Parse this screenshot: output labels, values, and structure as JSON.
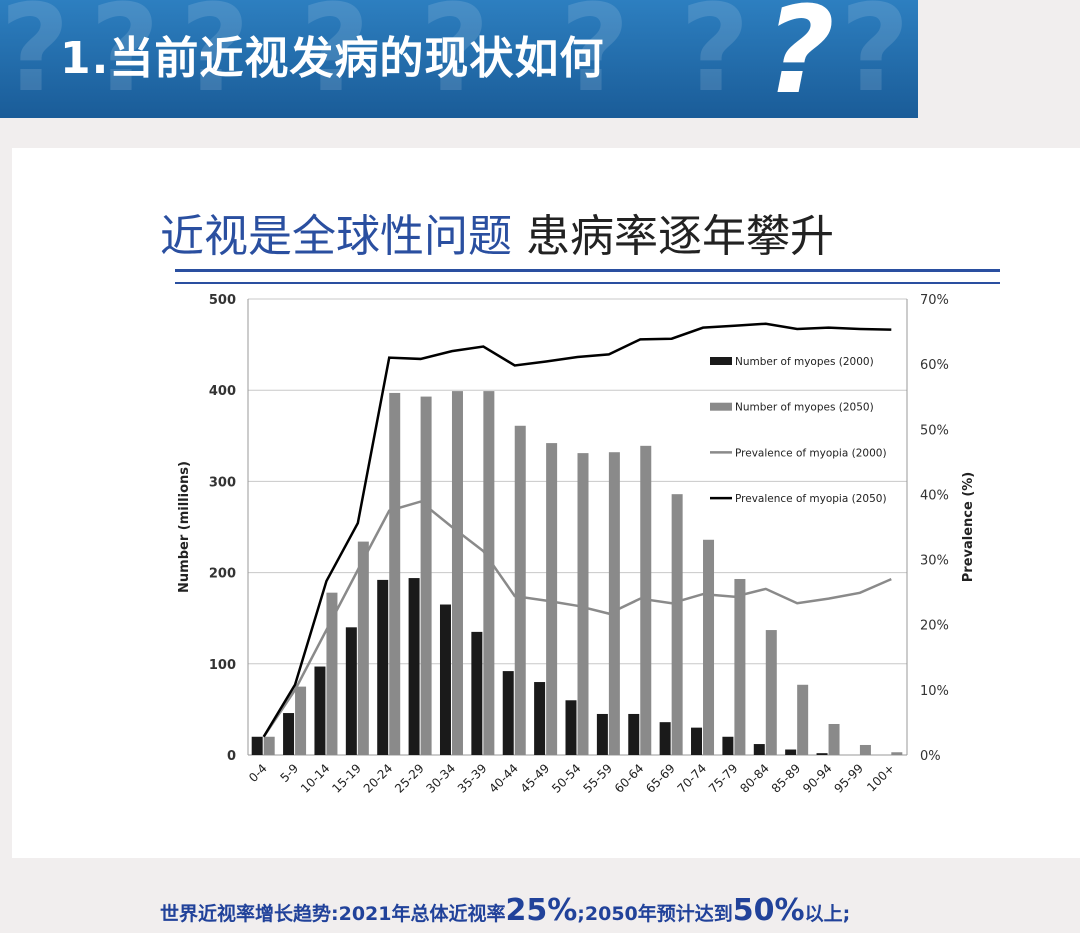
{
  "header": {
    "title": "1.当前近视发病的现状如何",
    "question_mark": "?"
  },
  "subtitle": {
    "blue": "近视是全球性问题",
    "dark": "患病率逐年攀升"
  },
  "footer": {
    "p1": "世界近视率增长趋势:2021年总体近视率",
    "v1": "25%",
    "p2": ";2050年预计达到",
    "v2": "50%",
    "p3": "以上;"
  },
  "colors": {
    "banner": "#1f6aab",
    "accent": "#2a4fa0",
    "bar2000": "#1a1a1a",
    "bar2050": "#8a8a8a",
    "line2000": "#8a8a8a",
    "line2050": "#000000"
  },
  "chart_data": {
    "type": "bar+line",
    "categories": [
      "0-4",
      "5-9",
      "10-14",
      "15-19",
      "20-24",
      "25-29",
      "30-34",
      "35-39",
      "40-44",
      "45-49",
      "50-54",
      "55-59",
      "60-64",
      "65-69",
      "70-74",
      "75-79",
      "80-84",
      "85-89",
      "90-94",
      "95-99",
      "100+"
    ],
    "ylabel": "Number (millions)",
    "y2label": "Prevalence (%)",
    "ylim": [
      0,
      500
    ],
    "yticks": [
      "0",
      "100",
      "200",
      "300",
      "400",
      "500"
    ],
    "y2lim": [
      0,
      70
    ],
    "y2ticks": [
      "0%",
      "10%",
      "20%",
      "30%",
      "40%",
      "50%",
      "60%",
      "70%"
    ],
    "grid": true,
    "legend": "right",
    "series": [
      {
        "name": "Number of myopes (2000)",
        "kind": "bar",
        "values": [
          20,
          46,
          97,
          140,
          192,
          194,
          165,
          135,
          92,
          80,
          60,
          45,
          45,
          36,
          30,
          20,
          12,
          6,
          2,
          0,
          0
        ]
      },
      {
        "name": "Number of myopes (2050)",
        "kind": "bar",
        "values": [
          20,
          75,
          178,
          234,
          397,
          393,
          399,
          399,
          361,
          342,
          331,
          332,
          339,
          286,
          236,
          193,
          137,
          77,
          34,
          11,
          3
        ]
      },
      {
        "name": "Prevalence of myopia (2000)",
        "kind": "line",
        "values": [
          2.8,
          10,
          19.2,
          28.4,
          37.5,
          38.9,
          35,
          31.3,
          24.4,
          23.7,
          22.9,
          21.7,
          24,
          23.3,
          24.7,
          24.3,
          25.5,
          23.3,
          24,
          24.9,
          27
        ]
      },
      {
        "name": "Prevalence of myopia (2050)",
        "kind": "line",
        "values": [
          2.8,
          10.8,
          26.7,
          35.6,
          61,
          60.8,
          62,
          62.7,
          59.8,
          60.4,
          61.1,
          61.5,
          63.8,
          63.9,
          65.6,
          65.9,
          66.2,
          65.4,
          65.6,
          65.4,
          65.3
        ]
      }
    ]
  }
}
